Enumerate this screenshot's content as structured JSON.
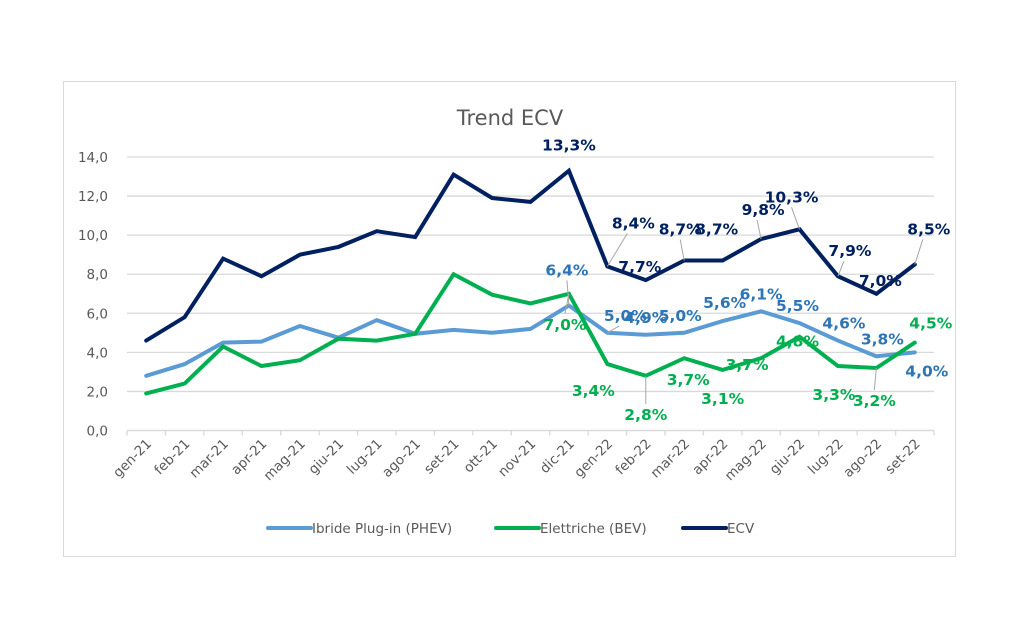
{
  "chart_data": {
    "type": "line",
    "title": "Trend ECV",
    "xlabel": "",
    "ylabel": "",
    "ylim": [
      0,
      14
    ],
    "yticks": [
      "0,0",
      "2,0",
      "4,0",
      "6,0",
      "8,0",
      "10,0",
      "12,0",
      "14,0"
    ],
    "grid": true,
    "legend_position": "bottom",
    "categories": [
      "gen-21",
      "feb-21",
      "mar-21",
      "apr-21",
      "mag-21",
      "giu-21",
      "lug-21",
      "ago-21",
      "set-21",
      "ott-21",
      "nov-21",
      "dic-21",
      "gen-22",
      "feb-22",
      "mar-22",
      "apr-22",
      "mag-22",
      "giu-22",
      "lug-22",
      "ago-22",
      "set-22"
    ],
    "series": [
      {
        "name": "Ibride Plug-in (PHEV)",
        "color": "#5B9BD5",
        "label_color": "#2E75B6",
        "values": [
          2.8,
          3.4,
          4.5,
          4.55,
          5.35,
          4.75,
          5.65,
          4.95,
          5.15,
          5.0,
          5.2,
          6.4,
          5.0,
          4.9,
          5.0,
          5.6,
          6.1,
          5.5,
          4.6,
          3.8,
          4.0
        ],
        "labels": [
          null,
          null,
          null,
          null,
          null,
          null,
          null,
          null,
          null,
          null,
          null,
          "6,4%",
          "5,0%",
          "4,9%",
          "5,0%",
          "5,6%",
          "6,1%",
          "5,5%",
          "4,6%",
          "3,8%",
          "4,0%"
        ]
      },
      {
        "name": "Elettriche (BEV)",
        "color": "#00B050",
        "label_color": "#00B050",
        "values": [
          1.9,
          2.4,
          4.3,
          3.3,
          3.6,
          4.7,
          4.6,
          4.95,
          8.0,
          6.95,
          6.5,
          7.0,
          3.4,
          2.8,
          3.7,
          3.1,
          3.7,
          4.8,
          3.3,
          3.2,
          4.5
        ],
        "labels": [
          null,
          null,
          null,
          null,
          null,
          null,
          null,
          null,
          null,
          null,
          null,
          "7,0%",
          "3,4%",
          "2,8%",
          "3,7%",
          "3,1%",
          "3,7%",
          "4,8%",
          "3,3%",
          "3,2%",
          "4,5%"
        ]
      },
      {
        "name": "ECV",
        "color": "#002060",
        "label_color": "#002060",
        "values": [
          4.6,
          5.8,
          8.8,
          7.9,
          9.0,
          9.4,
          10.2,
          9.9,
          13.1,
          11.9,
          11.7,
          13.3,
          8.4,
          7.7,
          8.7,
          8.7,
          9.8,
          10.3,
          7.9,
          7.0,
          8.5
        ],
        "labels": [
          null,
          null,
          null,
          null,
          null,
          null,
          null,
          null,
          null,
          null,
          null,
          "13,3%",
          "8,4%",
          "7,7%",
          "8,7%",
          "8,7%",
          "9,8%",
          "10,3%",
          "7,9%",
          "7,0%",
          "8,5%"
        ]
      }
    ]
  }
}
